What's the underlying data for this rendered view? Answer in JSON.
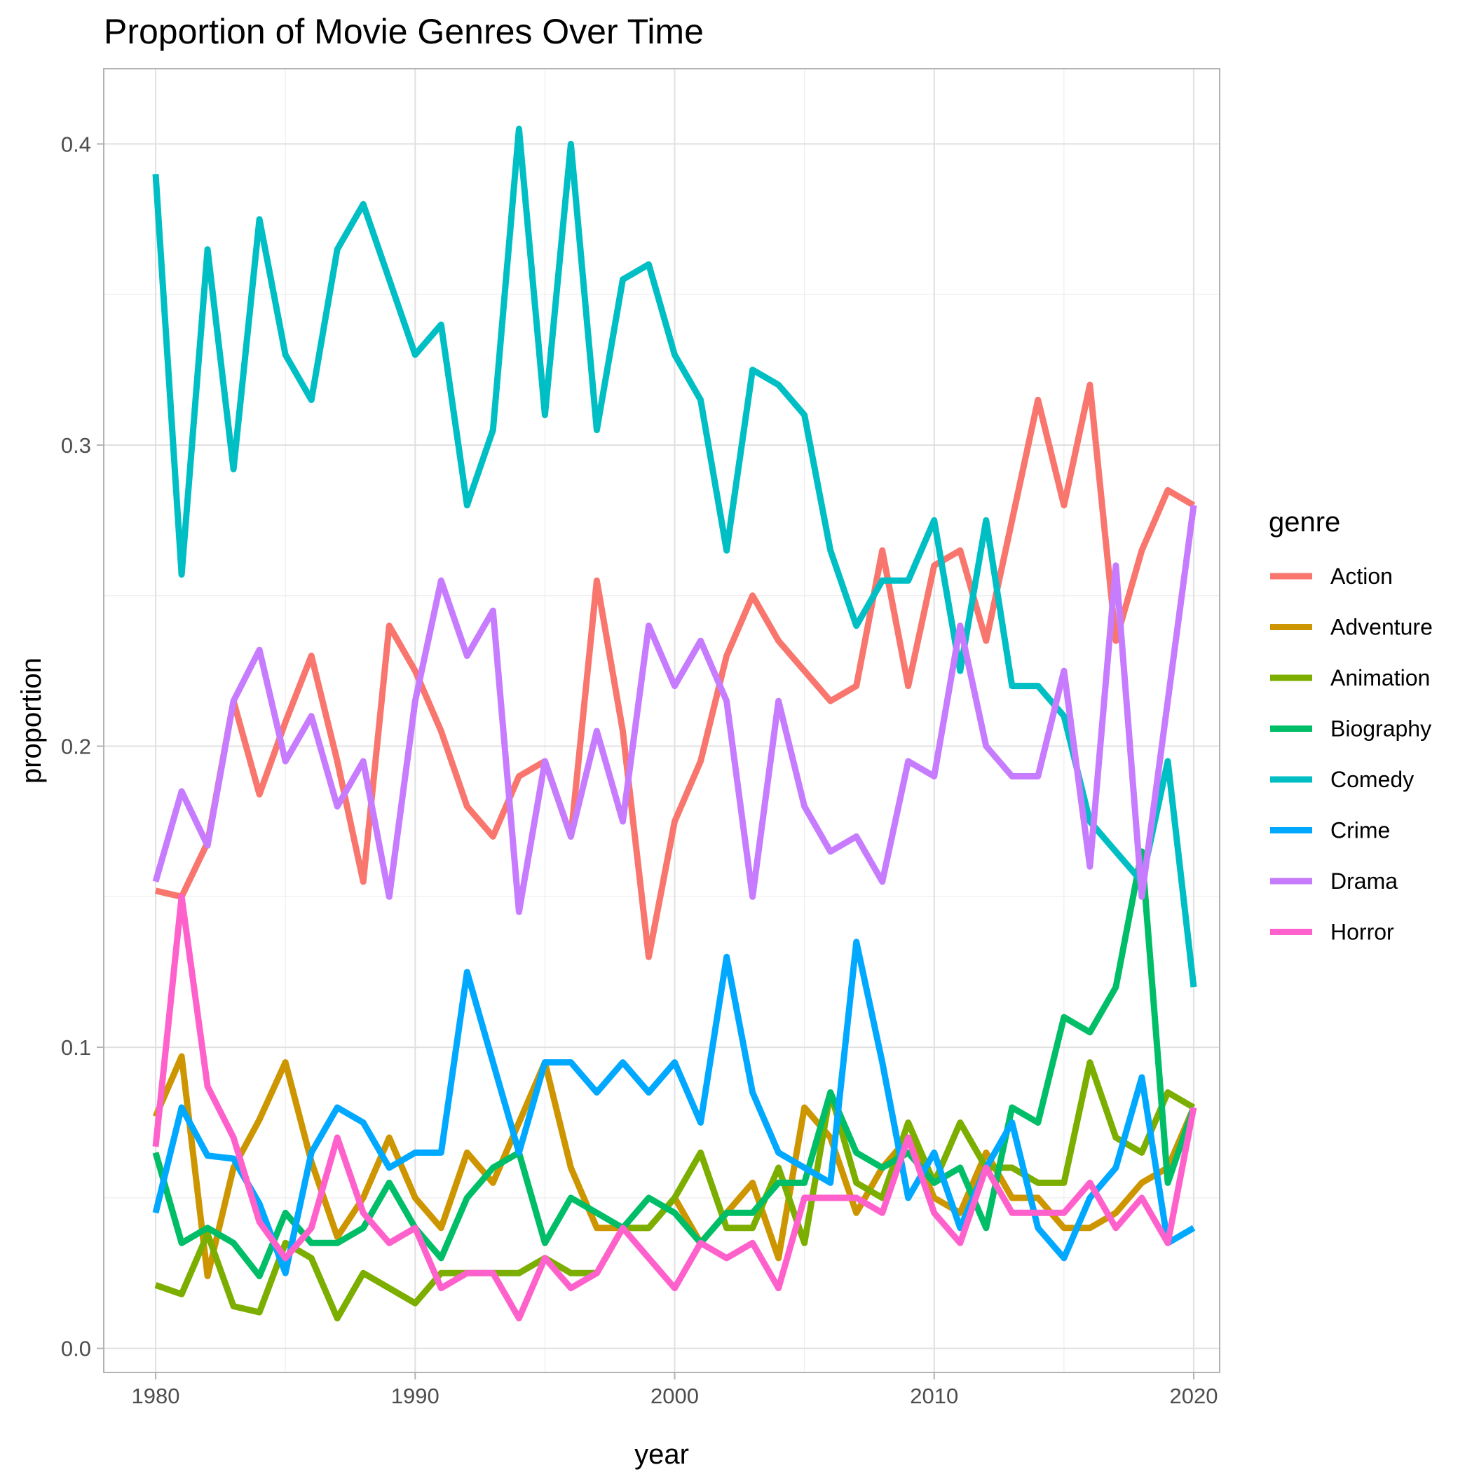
{
  "chart_data": {
    "type": "line",
    "title": "Proportion of Movie Genres Over Time",
    "xlabel": "year",
    "ylabel": "proportion",
    "xlim": [
      1978,
      2021
    ],
    "ylim": [
      -0.008,
      0.425
    ],
    "x_ticks": [
      1980,
      1990,
      2000,
      2010,
      2020
    ],
    "x_tick_labels": [
      "1980",
      "1990",
      "2000",
      "2010",
      "2020"
    ],
    "y_ticks": [
      0.0,
      0.1,
      0.2,
      0.3,
      0.4
    ],
    "y_tick_labels": [
      "0.0",
      "0.1",
      "0.2",
      "0.3",
      "0.4"
    ],
    "grid": true,
    "legend": {
      "title": "genre",
      "position": "right"
    },
    "x": [
      1980,
      1981,
      1982,
      1983,
      1984,
      1985,
      1986,
      1987,
      1988,
      1989,
      1990,
      1991,
      1992,
      1993,
      1994,
      1995,
      1996,
      1997,
      1998,
      1999,
      2000,
      2001,
      2002,
      2003,
      2004,
      2005,
      2006,
      2007,
      2008,
      2009,
      2010,
      2011,
      2012,
      2013,
      2014,
      2015,
      2016,
      2017,
      2018,
      2019,
      2020
    ],
    "series": [
      {
        "name": "Action",
        "color": "#F8766D",
        "values": [
          0.152,
          0.15,
          0.168,
          0.215,
          0.184,
          0.208,
          0.23,
          0.195,
          0.155,
          0.24,
          0.225,
          0.205,
          0.18,
          0.17,
          0.19,
          0.195,
          0.17,
          0.255,
          0.205,
          0.13,
          0.175,
          0.195,
          0.23,
          0.25,
          0.235,
          0.225,
          0.215,
          0.22,
          0.265,
          0.22,
          0.26,
          0.265,
          0.235,
          0.275,
          0.315,
          0.28,
          0.32,
          0.235,
          0.265,
          0.285,
          0.28
        ]
      },
      {
        "name": "Adventure",
        "color": "#CD9600",
        "values": [
          0.077,
          0.097,
          0.024,
          0.06,
          0.076,
          0.095,
          0.062,
          0.037,
          0.05,
          0.07,
          0.05,
          0.04,
          0.065,
          0.055,
          0.075,
          0.095,
          0.06,
          0.04,
          0.04,
          0.04,
          0.05,
          0.035,
          0.045,
          0.055,
          0.03,
          0.08,
          0.07,
          0.045,
          0.06,
          0.07,
          0.05,
          0.045,
          0.065,
          0.05,
          0.05,
          0.04,
          0.04,
          0.045,
          0.055,
          0.06,
          0.08
        ]
      },
      {
        "name": "Animation",
        "color": "#7CAE00",
        "values": [
          0.021,
          0.018,
          0.038,
          0.014,
          0.012,
          0.035,
          0.03,
          0.01,
          0.025,
          0.02,
          0.015,
          0.025,
          0.025,
          0.025,
          0.025,
          0.03,
          0.025,
          0.025,
          0.04,
          0.04,
          0.05,
          0.065,
          0.04,
          0.04,
          0.06,
          0.035,
          0.085,
          0.055,
          0.05,
          0.075,
          0.055,
          0.075,
          0.06,
          0.06,
          0.055,
          0.055,
          0.095,
          0.07,
          0.065,
          0.085,
          0.08
        ]
      },
      {
        "name": "Biography",
        "color": "#00BE67",
        "values": [
          0.065,
          0.035,
          0.04,
          0.035,
          0.024,
          0.045,
          0.035,
          0.035,
          0.04,
          0.055,
          0.04,
          0.03,
          0.05,
          0.06,
          0.065,
          0.035,
          0.05,
          0.045,
          0.04,
          0.05,
          0.045,
          0.035,
          0.045,
          0.045,
          0.055,
          0.055,
          0.085,
          0.065,
          0.06,
          0.065,
          0.055,
          0.06,
          0.04,
          0.08,
          0.075,
          0.11,
          0.105,
          0.12,
          0.165,
          0.055,
          0.08
        ]
      },
      {
        "name": "Comedy",
        "color": "#00BFC4",
        "values": [
          0.39,
          0.257,
          0.365,
          0.292,
          0.375,
          0.33,
          0.315,
          0.365,
          0.38,
          0.355,
          0.33,
          0.34,
          0.28,
          0.305,
          0.405,
          0.31,
          0.4,
          0.305,
          0.355,
          0.36,
          0.33,
          0.315,
          0.265,
          0.325,
          0.32,
          0.31,
          0.265,
          0.24,
          0.255,
          0.255,
          0.275,
          0.225,
          0.275,
          0.22,
          0.22,
          0.21,
          0.175,
          0.165,
          0.155,
          0.195,
          0.12
        ]
      },
      {
        "name": "Crime",
        "color": "#00A9FF",
        "values": [
          0.045,
          0.08,
          0.064,
          0.063,
          0.048,
          0.025,
          0.065,
          0.08,
          0.075,
          0.06,
          0.065,
          0.065,
          0.125,
          0.095,
          0.065,
          0.095,
          0.095,
          0.085,
          0.095,
          0.085,
          0.095,
          0.075,
          0.13,
          0.085,
          0.065,
          0.06,
          0.055,
          0.135,
          0.095,
          0.05,
          0.065,
          0.04,
          0.06,
          0.075,
          0.04,
          0.03,
          0.05,
          0.06,
          0.09,
          0.035,
          0.04
        ]
      },
      {
        "name": "Drama",
        "color": "#C77CFF",
        "values": [
          0.155,
          0.185,
          0.167,
          0.215,
          0.232,
          0.195,
          0.21,
          0.18,
          0.195,
          0.15,
          0.215,
          0.255,
          0.23,
          0.245,
          0.145,
          0.195,
          0.17,
          0.205,
          0.175,
          0.24,
          0.22,
          0.235,
          0.215,
          0.15,
          0.215,
          0.18,
          0.165,
          0.17,
          0.155,
          0.195,
          0.19,
          0.24,
          0.2,
          0.19,
          0.19,
          0.225,
          0.16,
          0.26,
          0.15,
          0.215,
          0.28
        ]
      },
      {
        "name": "Horror",
        "color": "#FF61CC",
        "values": [
          0.067,
          0.15,
          0.087,
          0.07,
          0.042,
          0.03,
          0.04,
          0.07,
          0.045,
          0.035,
          0.04,
          0.02,
          0.025,
          0.025,
          0.01,
          0.03,
          0.02,
          0.025,
          0.04,
          0.03,
          0.02,
          0.035,
          0.03,
          0.035,
          0.02,
          0.05,
          0.05,
          0.05,
          0.045,
          0.07,
          0.045,
          0.035,
          0.06,
          0.045,
          0.045,
          0.045,
          0.055,
          0.04,
          0.05,
          0.035,
          0.08
        ]
      }
    ]
  }
}
